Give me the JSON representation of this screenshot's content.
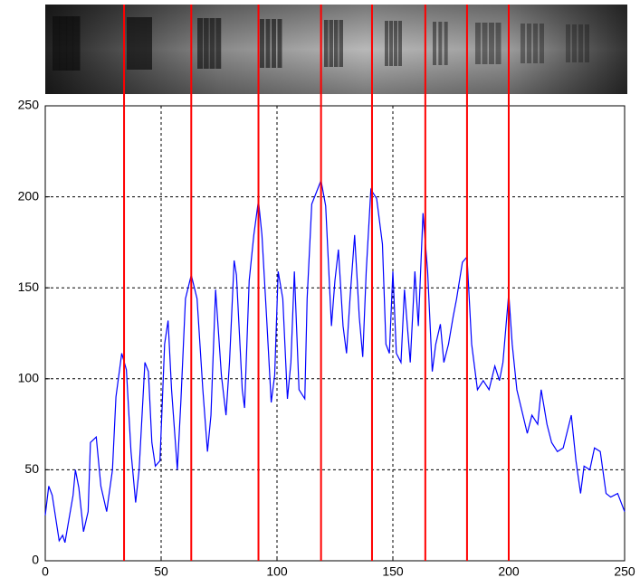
{
  "chart_data": {
    "type": "line",
    "x": [
      0,
      1.5,
      3,
      6,
      7.5,
      8.5,
      12,
      13,
      14.5,
      16.5,
      18.5,
      19.5,
      22,
      24,
      26.5,
      29,
      30.5,
      33,
      35,
      37,
      39,
      40.5,
      43,
      44.5,
      46,
      47.5,
      49.5,
      51.5,
      53,
      54.5,
      57,
      58.5,
      60.5,
      63,
      65.5,
      68,
      70,
      71.5,
      73.5,
      76,
      78,
      79.5,
      81.5,
      82.5,
      85,
      86,
      88,
      90,
      92,
      93.5,
      95.5,
      97.5,
      99,
      100.5,
      102.5,
      104.5,
      106,
      107.5,
      109.5,
      112,
      113,
      115,
      119,
      121,
      123.5,
      125,
      126.5,
      128.5,
      130,
      131.5,
      133.5,
      135.5,
      137,
      138.5,
      140.5,
      143,
      145.5,
      147,
      148.5,
      150,
      151.5,
      153.5,
      155,
      157.5,
      159.5,
      161,
      163,
      165,
      167,
      168.5,
      170.5,
      172,
      174,
      176,
      177.5,
      180,
      182,
      184,
      186.5,
      189,
      191.5,
      194,
      196,
      197.5,
      200,
      201.5,
      203.5,
      208,
      210,
      212.5,
      214,
      216.5,
      218.5,
      221,
      223.5,
      227,
      229,
      231,
      232.5,
      235,
      237,
      239.5,
      242,
      244,
      247,
      250
    ],
    "series": [
      {
        "color": "#0000ff",
        "values": [
          25,
          41,
          36,
          11,
          14,
          10,
          36,
          50,
          40,
          16,
          27,
          65,
          68,
          41,
          27,
          50,
          90,
          114,
          105,
          60,
          32,
          50,
          109,
          104,
          65,
          52,
          55,
          119,
          132,
          94,
          50,
          87,
          144,
          157,
          144,
          94,
          60,
          80,
          149,
          102,
          80,
          109,
          165,
          157,
          94,
          84,
          154,
          179,
          198,
          179,
          134,
          87,
          102,
          159,
          144,
          89,
          109,
          159,
          94,
          89,
          144,
          196,
          209,
          195,
          129,
          154,
          171,
          129,
          114,
          144,
          179,
          134,
          112,
          159,
          204,
          199,
          174,
          119,
          114,
          159,
          114,
          109,
          149,
          109,
          159,
          129,
          191,
          159,
          104,
          119,
          130,
          109,
          119,
          134,
          144,
          164,
          167,
          119,
          94,
          99,
          94,
          107,
          99,
          109,
          147,
          119,
          94,
          70,
          80,
          75,
          94,
          75,
          65,
          60,
          62,
          80,
          55,
          37,
          52,
          50,
          62,
          60,
          37,
          35,
          37,
          27
        ]
      }
    ],
    "vlines": {
      "color": "#ff0000",
      "values": [
        34,
        63,
        92,
        119,
        141,
        164,
        182,
        200
      ]
    },
    "xlim": [
      0,
      250
    ],
    "xticks": [
      0,
      50,
      100,
      150,
      200,
      250
    ],
    "ylim": [
      0,
      250
    ],
    "yticks": [
      0,
      50,
      100,
      150,
      200,
      250
    ],
    "grid": true
  }
}
